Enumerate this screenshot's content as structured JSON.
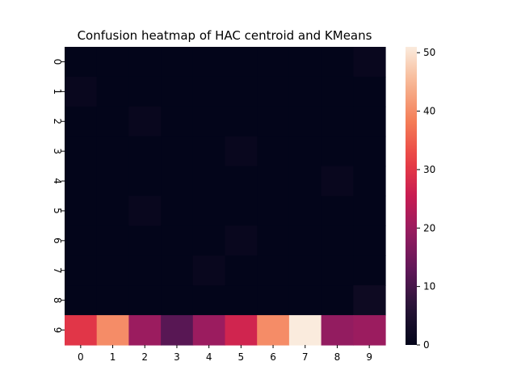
{
  "chart_data": {
    "type": "heatmap",
    "title": "Confusion heatmap of HAC centroid and KMeans",
    "xlabel": "",
    "ylabel": "",
    "x_labels": [
      "0",
      "1",
      "2",
      "3",
      "4",
      "5",
      "6",
      "7",
      "8",
      "9"
    ],
    "y_labels": [
      "0",
      "1",
      "2",
      "3",
      "4",
      "5",
      "6",
      "7",
      "8",
      "9"
    ],
    "matrix": [
      [
        0,
        0,
        0,
        0,
        0,
        0,
        0,
        0,
        0,
        1
      ],
      [
        1,
        0,
        0,
        0,
        0,
        0,
        0,
        0,
        0,
        0
      ],
      [
        0,
        0,
        1,
        0,
        0,
        0,
        0,
        0,
        0,
        0
      ],
      [
        0,
        0,
        0,
        0,
        0,
        1,
        0,
        0,
        0,
        0
      ],
      [
        0,
        0,
        0,
        0,
        0,
        0,
        0,
        0,
        1,
        0
      ],
      [
        0,
        0,
        1,
        0,
        0,
        0,
        0,
        0,
        0,
        0
      ],
      [
        0,
        0,
        0,
        0,
        0,
        1,
        0,
        0,
        0,
        0
      ],
      [
        0,
        0,
        0,
        0,
        1,
        0,
        0,
        0,
        0,
        0
      ],
      [
        0,
        0,
        0,
        0,
        0,
        0,
        0,
        0,
        0,
        2
      ],
      [
        30,
        40,
        20,
        12,
        20,
        27,
        40,
        51,
        19,
        20
      ]
    ],
    "vmin": 0,
    "vmax": 51,
    "colorbar_ticks": [
      0,
      10,
      20,
      30,
      40,
      50
    ],
    "colormap": "rocket"
  }
}
